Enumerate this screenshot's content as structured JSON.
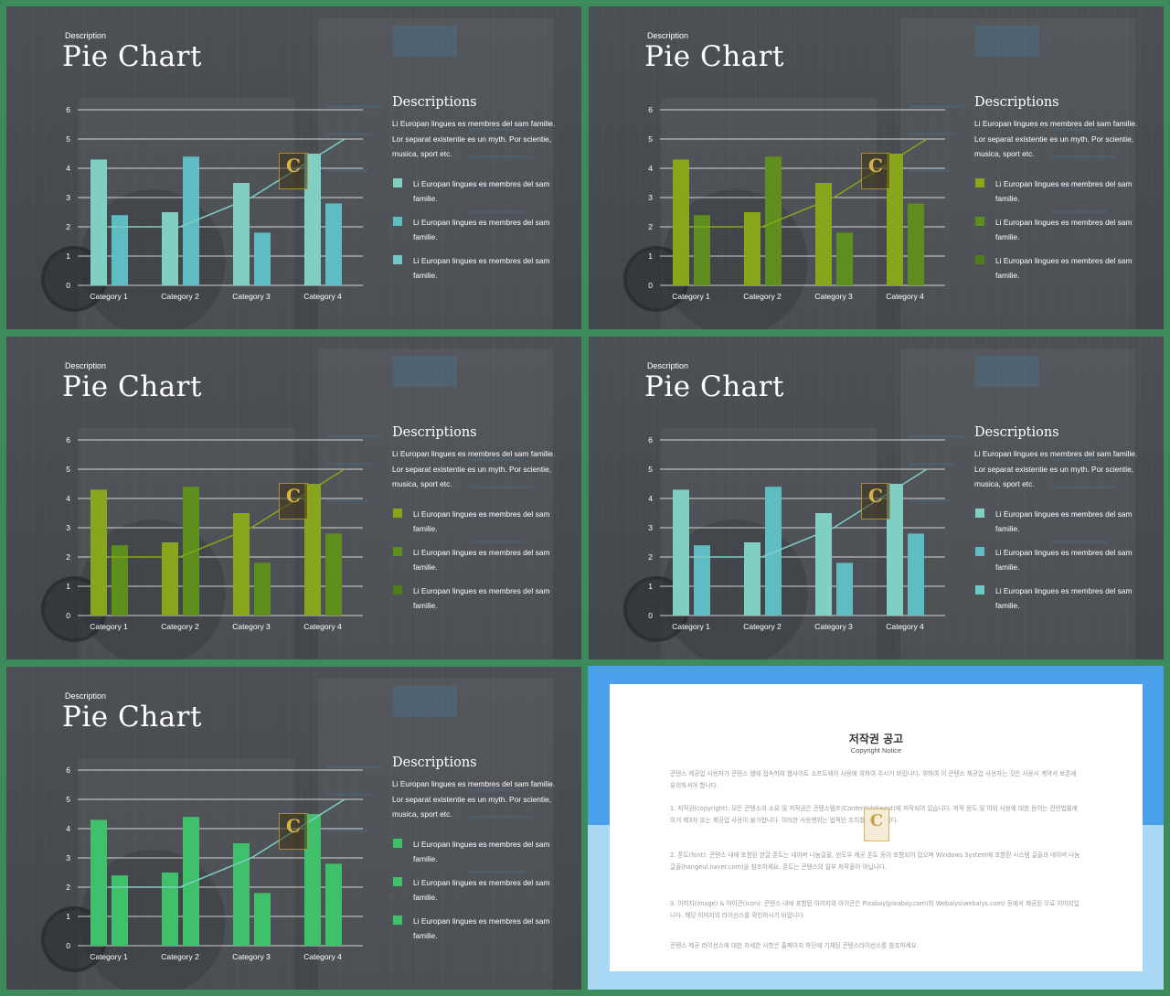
{
  "slides": [
    {
      "subtitle": "Description",
      "title": "Pie Chart",
      "descriptions_heading": "Descriptions",
      "descriptions_body": "Li Europan lingues es membres del sam familie. Lor separat existentie es un myth. Por scientie, musica, sport etc.",
      "legend": [
        {
          "label": "Li Europan lingues es membres del sam familie.",
          "color": "#7fcfc2"
        },
        {
          "label": "Li Europan lingues es membres del sam familie.",
          "color": "#5fbcc2"
        },
        {
          "label": "Li Europan lingues es membres del sam familie.",
          "color": "#6fc8c6"
        }
      ],
      "colors": {
        "bar1": "#7fcfc2",
        "bar2": "#5fbcc2",
        "line": "#7fcfc2"
      }
    },
    {
      "subtitle": "Description",
      "title": "Pie Chart",
      "descriptions_heading": "Descriptions",
      "descriptions_body": "Li Europan lingues es membres del sam familie. Lor separat existentie es un myth. Por scientie, musica, sport etc.",
      "legend": [
        {
          "label": "Li Europan lingues es membres del sam familie.",
          "color": "#86a61c"
        },
        {
          "label": "Li Europan lingues es membres del sam familie.",
          "color": "#5e8f1e"
        },
        {
          "label": "Li Europan lingues es membres del sam familie.",
          "color": "#4f7d1a"
        }
      ],
      "colors": {
        "bar1": "#86a61c",
        "bar2": "#5e8f1e",
        "line": "#86a61c"
      }
    },
    {
      "subtitle": "Description",
      "title": "Pie Chart",
      "descriptions_heading": "Descriptions",
      "descriptions_body": "Li Europan lingues es membres del sam familie. Lor separat existentie es un myth. Por scientie, musica, sport etc.",
      "legend": [
        {
          "label": "Li Europan lingues es membres del sam familie.",
          "color": "#86a61c"
        },
        {
          "label": "Li Europan lingues es membres del sam familie.",
          "color": "#5e8f1e"
        },
        {
          "label": "Li Europan lingues es membres del sam familie.",
          "color": "#4f7d1a"
        }
      ],
      "colors": {
        "bar1": "#86a61c",
        "bar2": "#5e8f1e",
        "line": "#86a61c"
      }
    },
    {
      "subtitle": "Description",
      "title": "Pie Chart",
      "descriptions_heading": "Descriptions",
      "descriptions_body": "Li Europan lingues es membres del sam familie. Lor separat existentie es un myth. Por scientie, musica, sport etc.",
      "legend": [
        {
          "label": "Li Europan lingues es membres del sam familie.",
          "color": "#7fcfc2"
        },
        {
          "label": "Li Europan lingues es membres del sam familie.",
          "color": "#5fbcc2"
        },
        {
          "label": "Li Europan lingues es membres del sam familie.",
          "color": "#6fc8c6"
        }
      ],
      "colors": {
        "bar1": "#7fcfc2",
        "bar2": "#5fbcc2",
        "line": "#7fcfc2"
      }
    },
    {
      "subtitle": "Description",
      "title": "Pie Chart",
      "descriptions_heading": "Descriptions",
      "descriptions_body": "Li Europan lingues es membres del sam familie. Lor separat existentie es un myth. Por scientie, musica, sport etc.",
      "legend": [
        {
          "label": "Li Europan lingues es membres del sam familie.",
          "color": "#3fc06a"
        },
        {
          "label": "Li Europan lingues es membres del sam familie.",
          "color": "#3fc06a"
        },
        {
          "label": "Li Europan lingues es membres del sam familie.",
          "color": "#3fc06a"
        }
      ],
      "colors": {
        "bar1": "#3fc06a",
        "bar2": "#3fc06a",
        "line": "#7fcfc2"
      }
    }
  ],
  "chart_data": {
    "type": "bar",
    "categories": [
      "Category 1",
      "Category 2",
      "Category 3",
      "Category 4"
    ],
    "series": [
      {
        "values": [
          4.3,
          2.5,
          3.5,
          4.5
        ]
      },
      {
        "values": [
          2.4,
          4.4,
          1.8,
          2.8
        ]
      }
    ],
    "line": [
      2.0,
      2.0,
      3.0,
      5.0
    ],
    "ylim": [
      0,
      6
    ],
    "yticks": [
      "0",
      "1",
      "2",
      "3",
      "4",
      "5",
      "6"
    ],
    "grid": true
  },
  "notice": {
    "title": "저작권 공고",
    "subtitle": "Copyright Notice",
    "paragraphs": [
      "콘텐스 제공업 사용자가 콘텐스 웹에 접속하여 웹사이트 소프트웨어 사용에 위하여 주시기 바랍니다. 위하여 이 콘텐스 제공업 사용자는 것은 사용시 계약서 보존에 유의하셔야 합니다.",
      "1. 저작권(copyright): 모든 콘텐스의 소유 및 저작권은 콘텐스템프(Contentstokeout)에 저작되어 있습니다. 저작 용도 및 이외 사용에 대한 용어는 관련법률에 의거 제3자 또는 제공업 사용이 불가합니다. 이러한 사용행위는 법적인 조치를 받게 됩니다.",
      "2. 폰트(font): 콘텐스 내에 포함된 한글 폰트는 네이버 나눔글꼴, 윈도우 제공 폰트 등이 포함되어 있으며 Windows System에 포함된 시스템 글꼴과 네이버 나눔글꼴(hangeul.naver.com)을 참조하세요. 폰트는 콘텐스의 일부 저작물이 아닙니다.",
      "3. 이미지(image) & 아이콘(icon): 콘텐스 내에 포함된 이미지와 아이콘은 Pixabay(pixabay.com)와 Webalys(webalys.com) 등에서 제공된 무료 이미지입니다. 해당 이미지의 라이선스를 확인하시기 바랍니다.",
      "콘텐스 제공 라이선스에 대한 자세한 사항은 홈페이지 하단에 기재된 콘텐스라이선스를 참조하세요."
    ]
  }
}
